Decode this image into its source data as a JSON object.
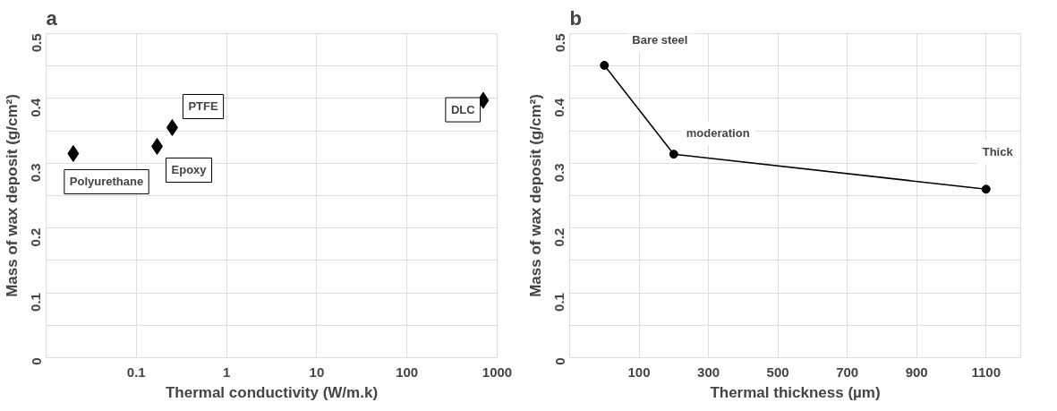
{
  "chart_data": [
    {
      "type": "scatter",
      "title": "a",
      "xlabel": "Thermal conductivity (W/m.k)",
      "ylabel": "Mass of wax deposit (g/cm²)",
      "log": "x",
      "x": [
        0.02,
        0.17,
        0.25,
        700
      ],
      "values": [
        0.315,
        0.326,
        0.355,
        0.397
      ],
      "color": "#000000",
      "marker": "diamond",
      "xlim": [
        0.01,
        1000
      ],
      "xticks": [
        0.1,
        1,
        10,
        100,
        1000
      ],
      "ylim": [
        0,
        0.5
      ],
      "yticks": [
        0,
        {
          "value": 0.05,
          "label": null
        },
        0.1,
        {
          "value": 0.15,
          "label": null
        },
        0.2,
        {
          "value": 0.25,
          "label": null
        },
        0.3,
        {
          "value": 0.35,
          "label": null
        },
        0.4,
        {
          "value": 0.45,
          "label": null
        },
        0.5
      ],
      "grid": true,
      "annotations": [
        {
          "text": "Polyurethane",
          "x": 0.02,
          "y": 0.315
        },
        {
          "text": "Epoxy",
          "x": 0.17,
          "y": 0.326
        },
        {
          "text": "PTFE",
          "x": 0.25,
          "y": 0.355
        },
        {
          "text": "DLC",
          "x": 700,
          "y": 0.397
        }
      ]
    },
    {
      "type": "line",
      "title": "b",
      "xlabel": "Thermal thickness (µm)",
      "ylabel": "Mass of wax deposit (g/cm²)",
      "x": [
        0,
        200,
        1100
      ],
      "values": [
        0.451,
        0.314,
        0.26
      ],
      "color": "#000000",
      "marker": "circle",
      "line_style": "solid",
      "xlim": [
        -100,
        1200
      ],
      "xticks": [
        100,
        300,
        500,
        700,
        900,
        1100
      ],
      "ylim": [
        0,
        0.5
      ],
      "yticks": [
        0,
        {
          "value": 0.05,
          "label": null
        },
        0.1,
        {
          "value": 0.15,
          "label": null
        },
        0.2,
        {
          "value": 0.25,
          "label": null
        },
        0.3,
        {
          "value": 0.35,
          "label": null
        },
        0.4,
        {
          "value": 0.45,
          "label": null
        },
        0.5
      ],
      "grid": true,
      "annotations": [
        {
          "text": "Bare steel",
          "x": 0,
          "y": 0.451
        },
        {
          "text": "moderation",
          "x": 200,
          "y": 0.314
        },
        {
          "text": "Thick",
          "x": 1100,
          "y": 0.26
        }
      ]
    }
  ]
}
